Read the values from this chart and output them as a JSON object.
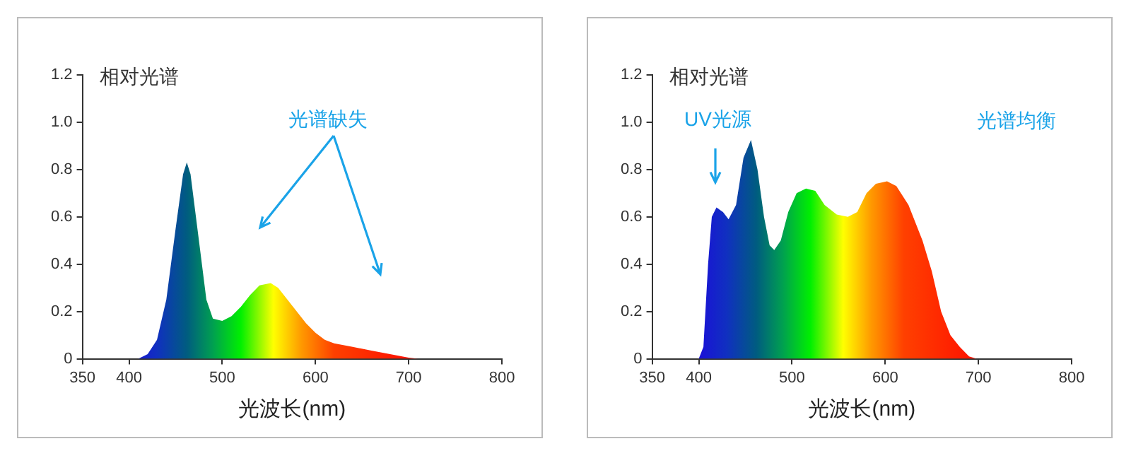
{
  "chart_data": [
    {
      "type": "area",
      "ylabel": "相对光谱",
      "xlabel": "光波长(nm)",
      "annotations": [
        "光谱缺失"
      ],
      "xlim": [
        350,
        800
      ],
      "xticks": [
        350,
        400,
        500,
        600,
        700,
        800
      ],
      "ylim": [
        0,
        1.2
      ],
      "yticks": [
        0,
        0.2,
        0.4,
        0.6,
        0.8,
        {
          "value": 1,
          "label": "1.0"
        },
        1.2
      ],
      "grid": false,
      "legend": false,
      "series": [
        {
          "x": [
            410,
            420,
            430,
            440,
            450,
            458,
            462,
            466,
            475,
            483,
            490,
            500,
            510,
            520,
            530,
            540,
            552,
            560,
            570,
            580,
            590,
            600,
            610,
            620,
            640,
            660,
            680,
            700,
            710
          ],
          "values": [
            0,
            0.02,
            0.08,
            0.25,
            0.55,
            0.78,
            0.83,
            0.78,
            0.5,
            0.25,
            0.17,
            0.16,
            0.18,
            0.22,
            0.27,
            0.31,
            0.32,
            0.3,
            0.25,
            0.2,
            0.15,
            0.11,
            0.08,
            0.065,
            0.05,
            0.035,
            0.02,
            0.005,
            0
          ]
        }
      ]
    },
    {
      "type": "area",
      "ylabel": "相对光谱",
      "xlabel": "光波长(nm)",
      "annotations": [
        "UV光源",
        "光谱均衡"
      ],
      "xlim": [
        350,
        800
      ],
      "xticks": [
        350,
        400,
        500,
        600,
        700,
        800
      ],
      "ylim": [
        0,
        1.2
      ],
      "yticks": [
        0,
        0.2,
        0.4,
        0.6,
        0.8,
        {
          "value": 1,
          "label": "1.0"
        },
        1.2
      ],
      "grid": false,
      "legend": false,
      "series": [
        {
          "x": [
            400,
            405,
            410,
            414,
            419,
            426,
            432,
            440,
            448,
            456,
            463,
            470,
            476,
            481,
            488,
            496,
            505,
            515,
            525,
            535,
            548,
            560,
            570,
            580,
            590,
            602,
            612,
            625,
            640,
            650,
            660,
            670,
            680,
            690,
            698
          ],
          "values": [
            0,
            0.05,
            0.4,
            0.6,
            0.64,
            0.62,
            0.59,
            0.65,
            0.85,
            0.925,
            0.8,
            0.6,
            0.48,
            0.46,
            0.5,
            0.62,
            0.7,
            0.72,
            0.71,
            0.65,
            0.61,
            0.6,
            0.62,
            0.7,
            0.74,
            0.75,
            0.73,
            0.65,
            0.5,
            0.37,
            0.2,
            0.1,
            0.05,
            0.01,
            0
          ]
        }
      ]
    }
  ]
}
